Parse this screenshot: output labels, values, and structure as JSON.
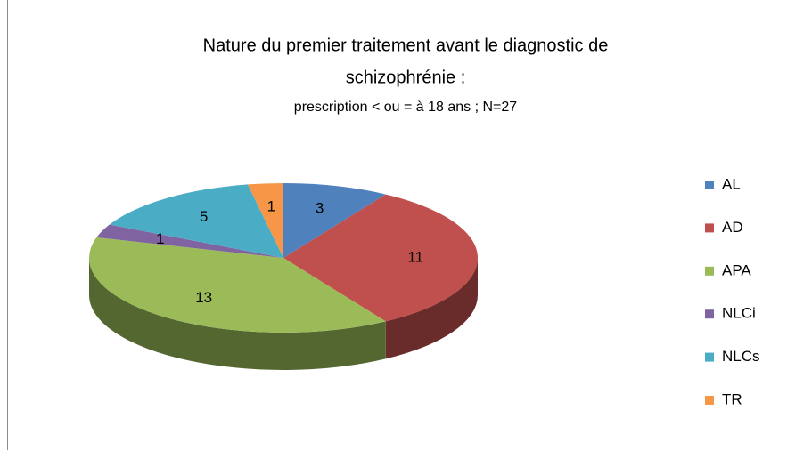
{
  "chart_data": {
    "type": "pie",
    "title": "Nature du premier traitement avant le diagnostic de",
    "title_line2": "schizophrénie :",
    "subtitle": "prescription < ou = à 18 ans ; N=27",
    "categories": [
      "AL",
      "AD",
      "APA",
      "NLCi",
      "NLCs",
      "TR"
    ],
    "values": [
      3,
      11,
      13,
      1,
      5,
      1
    ],
    "colors": [
      "#4f81bd",
      "#c0504d",
      "#9bbb59",
      "#8064a2",
      "#4bacc6",
      "#f79646"
    ],
    "legend": "right"
  }
}
